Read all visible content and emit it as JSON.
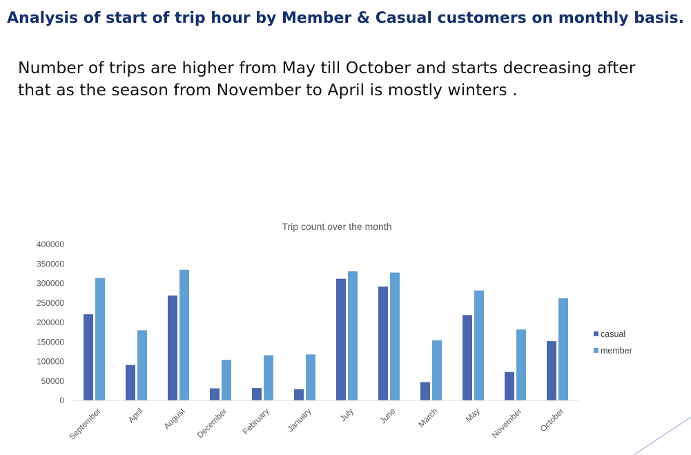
{
  "slide": {
    "title": "Analysis of start of trip hour by Member & Casual customers on monthly basis.",
    "body": "Number of trips are higher from May till October and starts decreasing after that as the season from November to April is mostly winters ."
  },
  "chart_data": {
    "type": "bar",
    "title": "Trip count over the month",
    "xlabel": "",
    "ylabel": "",
    "ylim": [
      0,
      400000
    ],
    "yticks": [
      0,
      50000,
      100000,
      150000,
      200000,
      250000,
      300000,
      350000,
      400000
    ],
    "grid": false,
    "legend_position": "right",
    "categories": [
      "September",
      "April",
      "August",
      "December",
      "February",
      "January",
      "July",
      "June",
      "March",
      "May",
      "November",
      "October"
    ],
    "series": [
      {
        "name": "casual",
        "color": "#4a67ae",
        "values": [
          221000,
          91000,
          269000,
          31000,
          32000,
          29000,
          312000,
          292000,
          47000,
          219000,
          73000,
          152000
        ]
      },
      {
        "name": "member",
        "color": "#62a0d4",
        "values": [
          314000,
          180000,
          335000,
          104000,
          116000,
          118000,
          331000,
          328000,
          154000,
          282000,
          182000,
          262000
        ]
      }
    ]
  },
  "decoration": {
    "accent_line_color": "#8ea2d4"
  }
}
